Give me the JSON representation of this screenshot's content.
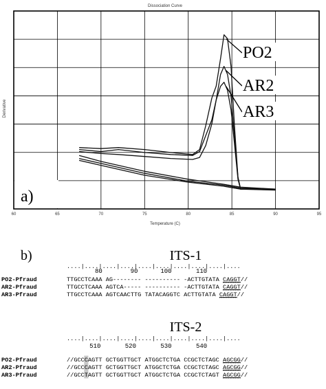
{
  "panel_a": {
    "label": "a)",
    "plot_title": "Dissociation Curve",
    "xlabel": "Temperature (C)",
    "ylabel": "Derivative",
    "chart_data": {
      "type": "line",
      "title": "Dissociation Curve",
      "xlabel": "Temperature (C)",
      "ylabel": "Derivative",
      "xlim": [
        60,
        95
      ],
      "ylim": [
        0,
        1
      ],
      "xticks": [
        60,
        65,
        70,
        75,
        80,
        85,
        90,
        95
      ],
      "grid": true,
      "series": [
        {
          "name": "PO2",
          "x": [
            67.5,
            70,
            72,
            75,
            78,
            80.5,
            81.3,
            82,
            82.7,
            83.2,
            83.7,
            84.1,
            84.5,
            84.9,
            85.3,
            85.7,
            86,
            87,
            90
          ],
          "y": [
            0.31,
            0.305,
            0.31,
            0.3,
            0.285,
            0.275,
            0.3,
            0.42,
            0.56,
            0.62,
            0.76,
            0.88,
            0.86,
            0.72,
            0.42,
            0.16,
            0.1,
            0.1,
            0.1
          ]
        },
        {
          "name": "AR2",
          "x": [
            67.5,
            70,
            72,
            75,
            78,
            80.5,
            81.3,
            82,
            82.7,
            83.2,
            83.7,
            84.1,
            84.5,
            84.9,
            85.3,
            85.7,
            86,
            87,
            90
          ],
          "y": [
            0.3,
            0.29,
            0.3,
            0.285,
            0.275,
            0.27,
            0.29,
            0.37,
            0.45,
            0.55,
            0.68,
            0.72,
            0.68,
            0.57,
            0.37,
            0.16,
            0.1,
            0.1,
            0.1
          ]
        },
        {
          "name": "AR3",
          "x": [
            67.5,
            70,
            72,
            75,
            78,
            80.5,
            81.3,
            82,
            82.7,
            83.2,
            83.7,
            84.1,
            84.5,
            84.9,
            85.3,
            85.7,
            86,
            87,
            90
          ],
          "y": [
            0.29,
            0.28,
            0.275,
            0.265,
            0.255,
            0.25,
            0.26,
            0.32,
            0.43,
            0.55,
            0.62,
            0.64,
            0.6,
            0.5,
            0.33,
            0.15,
            0.1,
            0.1,
            0.1
          ]
        },
        {
          "name": "",
          "x": [
            67.5,
            70,
            75,
            80,
            84,
            86,
            90
          ],
          "y": [
            0.27,
            0.24,
            0.19,
            0.15,
            0.125,
            0.11,
            0.1
          ]
        },
        {
          "name": "",
          "x": [
            67.5,
            70,
            75,
            80,
            84,
            86,
            90
          ],
          "y": [
            0.255,
            0.23,
            0.18,
            0.14,
            0.12,
            0.105,
            0.1
          ]
        },
        {
          "name": "",
          "x": [
            67.5,
            70,
            75,
            80,
            84,
            86,
            90
          ],
          "y": [
            0.245,
            0.22,
            0.17,
            0.135,
            0.115,
            0.1,
            0.095
          ]
        }
      ]
    }
  },
  "panel_b": {
    "label": "b)",
    "its1": {
      "title": "ITS-1",
      "ruler": "....|....|....|....|....|....|....|....|....|....",
      "positions": [
        {
          "label": "80",
          "col": 9
        },
        {
          "label": "90",
          "col": 19
        },
        {
          "label": "100",
          "col": 28
        },
        {
          "label": "110",
          "col": 38
        }
      ],
      "rows": [
        {
          "name": "PO2-Pfraud",
          "seq": "TTGCCTCAAA AG-------- ---------- -ACTTGTATA ",
          "tail": "CAGGT",
          "end": "//"
        },
        {
          "name": "AR2-Pfraud",
          "seq": "TTGCCTCAAA AGTCA----- ---------- -ACTTGTATA ",
          "tail": "CAGGT",
          "end": "//"
        },
        {
          "name": "AR3-Pfraud",
          "seq": "TTGCCTCAAA AGTCAACTTG TATACAGGTC ACTTGTATA ",
          "tail": "CAGGT",
          "end": "//"
        }
      ]
    },
    "its2": {
      "title": "ITS-2",
      "ruler": "....|....|....|....|....|....|....|....|....|....",
      "positions": [
        {
          "label": "510",
          "col": 8
        },
        {
          "label": "520",
          "col": 18
        },
        {
          "label": "530",
          "col": 28
        },
        {
          "label": "540",
          "col": 38
        }
      ],
      "rows": [
        {
          "name": "PO2-Pfraud",
          "pre": "//GCC",
          "hl": "C",
          "seq": "AGTT GCTGGTTGCT ATGGCTCTGA CCGCTCTAGC ",
          "tail": "AGCGG",
          "end": "//"
        },
        {
          "name": "AR2-Pfraud",
          "pre": "//GCC",
          "hl": "C",
          "seq": "AGTT GCTGGTTGCT ATGGCTCTGA CCGCTCTAGC ",
          "tail": "AGCGG",
          "end": "//"
        },
        {
          "name": "AR3-Pfraud",
          "pre": "//GCC",
          "hl": "T",
          "seq": "AGTT GCTGGTTGCT ATGGCTCTGA CCGCTCTAGT ",
          "tail": "AGCGG",
          "end": "//"
        }
      ]
    }
  }
}
